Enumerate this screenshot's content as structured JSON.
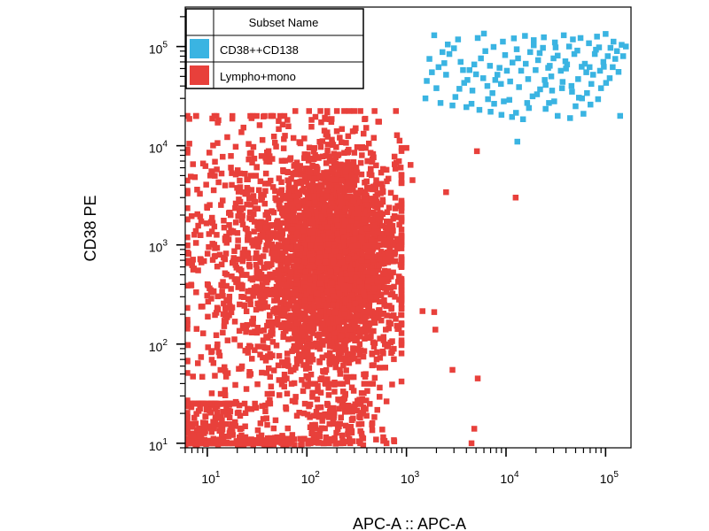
{
  "chart_data": {
    "type": "scatter",
    "xlabel": "APC-A :: APC-A",
    "ylabel": "CD38 PE",
    "x_scale": "log",
    "y_scale": "log",
    "xlim": [
      6,
      180000
    ],
    "ylim": [
      9,
      250000
    ],
    "grid": false,
    "x_ticks": [
      {
        "value": 10,
        "base": "10",
        "exp": "1"
      },
      {
        "value": 100,
        "base": "10",
        "exp": "2"
      },
      {
        "value": 1000,
        "base": "10",
        "exp": "3"
      },
      {
        "value": 10000,
        "base": "10",
        "exp": "4"
      },
      {
        "value": 100000,
        "base": "10",
        "exp": "5"
      }
    ],
    "y_ticks": [
      {
        "value": 10,
        "base": "10",
        "exp": "1"
      },
      {
        "value": 100,
        "base": "10",
        "exp": "2"
      },
      {
        "value": 1000,
        "base": "10",
        "exp": "3"
      },
      {
        "value": 10000,
        "base": "10",
        "exp": "4"
      },
      {
        "value": 100000,
        "base": "10",
        "exp": "5"
      }
    ],
    "legend": {
      "title": "Subset Name",
      "placement": "top-left"
    },
    "series": [
      {
        "name": "CD38++CD138",
        "color": "#3ab4e2",
        "points": [
          [
            1900,
            130000
          ],
          [
            2600,
            105000
          ],
          [
            3300,
            118000
          ],
          [
            5200,
            122000
          ],
          [
            6000,
            135000
          ],
          [
            7500,
            99000
          ],
          [
            9300,
            112000
          ],
          [
            12000,
            121000
          ],
          [
            15500,
            128000
          ],
          [
            19000,
            116000
          ],
          [
            24000,
            124000
          ],
          [
            31000,
            110000
          ],
          [
            38000,
            130000
          ],
          [
            47000,
            118000
          ],
          [
            56000,
            122000
          ],
          [
            68000,
            108000
          ],
          [
            82000,
            126000
          ],
          [
            100000,
            134000
          ],
          [
            120000,
            112000
          ],
          [
            145000,
            104000
          ],
          [
            1700,
            75000
          ],
          [
            2100,
            62000
          ],
          [
            2700,
            84000
          ],
          [
            3500,
            70000
          ],
          [
            4300,
            58000
          ],
          [
            5600,
            76000
          ],
          [
            6900,
            64000
          ],
          [
            8200,
            52000
          ],
          [
            9800,
            82000
          ],
          [
            11600,
            69000
          ],
          [
            14200,
            57000
          ],
          [
            17500,
            88000
          ],
          [
            21000,
            73000
          ],
          [
            26500,
            61000
          ],
          [
            33000,
            81000
          ],
          [
            41000,
            66000
          ],
          [
            52000,
            91000
          ],
          [
            64000,
            55000
          ],
          [
            78000,
            84000
          ],
          [
            95000,
            70000
          ],
          [
            118000,
            62000
          ],
          [
            1600,
            45000
          ],
          [
            2000,
            38000
          ],
          [
            2500,
            52000
          ],
          [
            3100,
            31000
          ],
          [
            3800,
            43000
          ],
          [
            4600,
            36000
          ],
          [
            5900,
            48000
          ],
          [
            7300,
            34000
          ],
          [
            8900,
            42000
          ],
          [
            10800,
            29000
          ],
          [
            13500,
            39000
          ],
          [
            16700,
            47000
          ],
          [
            20500,
            33000
          ],
          [
            25000,
            41000
          ],
          [
            30500,
            28000
          ],
          [
            37000,
            44000
          ],
          [
            46000,
            35000
          ],
          [
            58000,
            30000
          ],
          [
            72000,
            42000
          ],
          [
            90000,
            38000
          ],
          [
            1550,
            30000
          ],
          [
            2200,
            27000
          ],
          [
            2900,
            25500
          ],
          [
            4000,
            24500
          ],
          [
            5400,
            23000
          ],
          [
            7000,
            22000
          ],
          [
            9000,
            20500
          ],
          [
            11500,
            19500
          ],
          [
            12600,
            21500
          ],
          [
            14800,
            18500
          ],
          [
            25000,
            23500
          ],
          [
            33000,
            20000
          ],
          [
            44000,
            19000
          ],
          [
            60000,
            21000
          ],
          [
            2300,
            88000
          ],
          [
            3000,
            96000
          ],
          [
            3700,
            58000
          ],
          [
            4800,
            66000
          ],
          [
            6200,
            90000
          ],
          [
            7800,
            46000
          ],
          [
            10200,
            57000
          ],
          [
            12800,
            94000
          ],
          [
            15800,
            67000
          ],
          [
            19800,
            58000
          ],
          [
            23500,
            97000
          ],
          [
            28500,
            50000
          ],
          [
            35500,
            57000
          ],
          [
            43000,
            100000
          ],
          [
            53000,
            47000
          ],
          [
            62000,
            67000
          ],
          [
            75000,
            52000
          ],
          [
            86000,
            98000
          ],
          [
            105000,
            80000
          ],
          [
            130000,
            90000
          ],
          [
            160000,
            100000
          ],
          [
            150000,
            80000
          ],
          [
            9500,
            28000
          ],
          [
            17000,
            24000
          ],
          [
            22000,
            37000
          ],
          [
            27500,
            64000
          ],
          [
            50000,
            25000
          ],
          [
            65000,
            34000
          ],
          [
            88000,
            57000
          ],
          [
            110000,
            48000
          ],
          [
            125000,
            75000
          ],
          [
            3400,
            37500
          ],
          [
            4100,
            46000
          ],
          [
            5000,
            52500
          ],
          [
            6600,
            29500
          ],
          [
            11000,
            44500
          ],
          [
            18500,
            31500
          ],
          [
            29000,
            36000
          ],
          [
            40000,
            60000
          ],
          [
            140000,
            20000
          ],
          [
            69000,
            62000
          ],
          [
            1800,
            55000
          ],
          [
            2400,
            68000
          ],
          [
            8600,
            61000
          ],
          [
            13200,
            76000
          ],
          [
            21800,
            86000
          ],
          [
            31500,
            98000
          ],
          [
            39500,
            71000
          ],
          [
            48500,
            84000
          ],
          [
            57500,
            62500
          ],
          [
            80000,
            93000
          ],
          [
            96000,
            62500
          ],
          [
            112000,
            97000
          ],
          [
            135000,
            55500
          ],
          [
            6500,
            40000
          ],
          [
            24500,
            46000
          ],
          [
            36500,
            38000
          ],
          [
            4500,
            26500
          ],
          [
            7600,
            26500
          ],
          [
            16300,
            27000
          ],
          [
            27000,
            27000
          ],
          [
            45500,
            40000
          ],
          [
            54000,
            30500
          ],
          [
            70500,
            26000
          ],
          [
            84000,
            29500
          ],
          [
            101000,
            43000
          ],
          [
            13000,
            11000
          ],
          [
            19000,
            103000
          ],
          [
            30000,
            76000
          ]
        ]
      },
      {
        "name": "Lympho+mono",
        "color": "#e8403b",
        "points": [
          [
            2500,
            3400
          ],
          [
            5100,
            8800
          ],
          [
            12500,
            3000
          ],
          [
            1450,
            215
          ],
          [
            1900,
            210
          ],
          [
            1950,
            140
          ],
          [
            2900,
            55
          ],
          [
            4800,
            14
          ],
          [
            5200,
            45
          ],
          [
            4500,
            10
          ],
          [
            1150,
            4500
          ],
          [
            1100,
            6400
          ],
          [
            1000,
            9500
          ],
          [
            760,
            6500
          ],
          [
            850,
            1600
          ],
          [
            640,
            1000
          ],
          [
            700,
            480
          ],
          [
            600,
            250
          ],
          [
            620,
            140
          ],
          [
            720,
            85
          ],
          [
            520,
            17500
          ],
          [
            380,
            18500
          ],
          [
            470,
            12000
          ],
          [
            300,
            8500
          ],
          [
            200,
            14000
          ],
          [
            260,
            12500
          ]
        ],
        "clusters": [
          {
            "count": 3200,
            "x_log10": [
              2.25,
              0.34
            ],
            "y_log10": [
              2.85,
              0.55
            ],
            "x_range": [
              1.1,
              2.95
            ],
            "y_range": [
              1.15,
              4.35
            ]
          },
          {
            "count": 500,
            "x_log10": [
              1.35,
              0.35
            ],
            "y_log10": [
              2.9,
              0.75
            ],
            "x_range": [
              0.8,
              1.9
            ],
            "y_range": [
              1.15,
              4.3
            ]
          },
          {
            "count": 260,
            "x_log10": [
              1.05,
              0.25
            ],
            "y_log10": [
              1.2,
              0.25
            ],
            "x_range": [
              0.8,
              1.8
            ],
            "y_range": [
              1.0,
              1.4
            ]
          },
          {
            "count": 140,
            "x_log10": [
              2.35,
              0.25
            ],
            "y_log10": [
              1.3,
              0.2
            ],
            "x_range": [
              1.7,
              2.8
            ],
            "y_range": [
              1.0,
              1.6
            ]
          },
          {
            "count": 120,
            "x_log10": [
              1.6,
              0.5
            ],
            "y_log10": [
              1.02,
              0.03
            ],
            "x_range": [
              0.78,
              2.95
            ],
            "y_range": [
              0.98,
              1.08
            ]
          }
        ]
      }
    ]
  }
}
